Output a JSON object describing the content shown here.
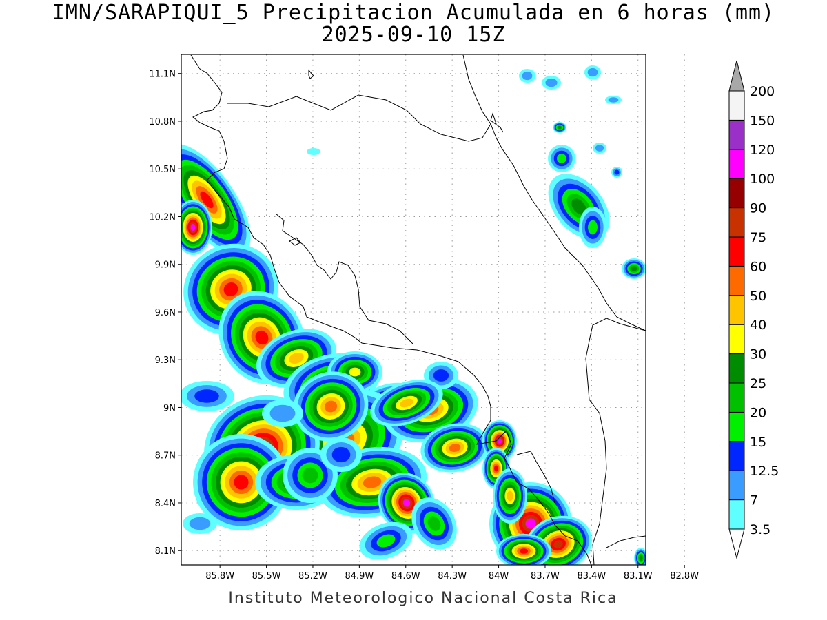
{
  "header": {
    "title": "IMN/SARAPIQUI_5 Precipitacion Acumulada en 6 horas (mm)",
    "datetime": "2025-09-10 15Z"
  },
  "footer": {
    "credit": "Instituto Meteorologico Nacional Costa Rica"
  },
  "axes": {
    "lon_labels": [
      "85.8W",
      "85.5W",
      "85.2W",
      "84.9W",
      "84.6W",
      "84.3W",
      "84W",
      "83.7W",
      "83.4W",
      "83.1W",
      "82.8W"
    ],
    "lon_values": [
      -85.8,
      -85.5,
      -85.2,
      -84.9,
      -84.6,
      -84.3,
      -84.0,
      -83.7,
      -83.4,
      -83.1,
      -82.8
    ],
    "lat_labels": [
      "11.1N",
      "10.8N",
      "10.5N",
      "10.2N",
      "9.9N",
      "9.6N",
      "9.3N",
      "9N",
      "8.7N",
      "8.4N",
      "8.1N"
    ],
    "lat_values": [
      11.1,
      10.8,
      10.5,
      10.2,
      9.9,
      9.6,
      9.3,
      9.0,
      8.7,
      8.4,
      8.1
    ],
    "lon_range": [
      -86.05,
      -83.05
    ],
    "lat_range": [
      8.01,
      11.22
    ]
  },
  "legend": {
    "labels": [
      "3.5",
      "7",
      "12.5",
      "15",
      "20",
      "25",
      "30",
      "40",
      "50",
      "60",
      "75",
      "90",
      "100",
      "120",
      "150",
      "200"
    ],
    "colors": [
      "#60ffff",
      "#3a9cff",
      "#0026ff",
      "#00f000",
      "#00c000",
      "#008c00",
      "#ffff00",
      "#ffc400",
      "#ff6a00",
      "#ff0000",
      "#c83200",
      "#960000",
      "#ff00ff",
      "#9a30c8",
      "#f4f4f4",
      "#a8a8a8"
    ]
  },
  "palette": {
    "c1": "#60ffff",
    "c2": "#3a9cff",
    "c3": "#0026ff",
    "c4": "#00f000",
    "c5": "#00c000",
    "c6": "#008c00",
    "c7": "#ffff00",
    "c8": "#ffc400",
    "c9": "#ff6a00",
    "c10": "#ff0000",
    "c11": "#c83200",
    "c12": "#ff00ff"
  }
}
